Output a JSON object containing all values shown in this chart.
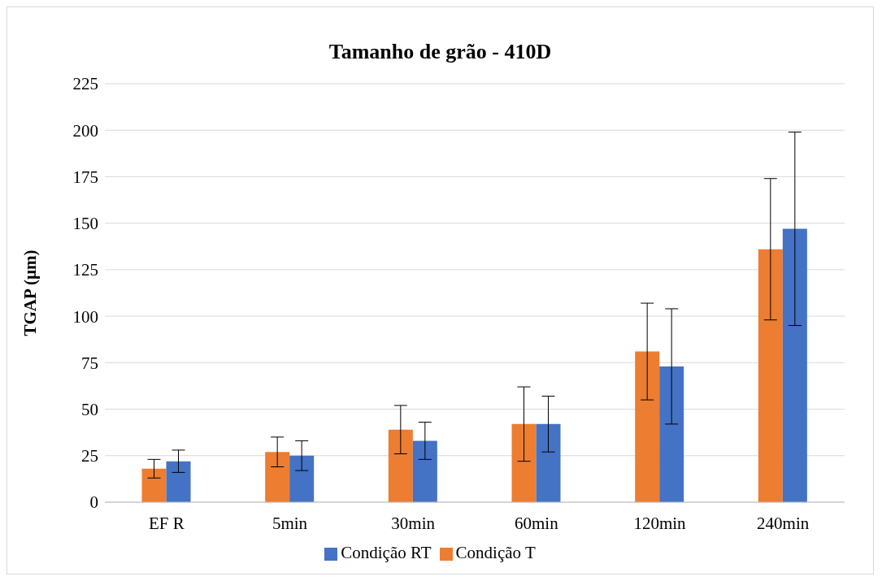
{
  "chart_data": {
    "type": "bar",
    "title": "Tamanho de grão - 410D",
    "ylabel": "TGAP (µm)",
    "categories": [
      "EF R",
      "5min",
      "30min",
      "60min",
      "120min",
      "240min"
    ],
    "series": [
      {
        "name": "Condição T",
        "color": "#ed7d31",
        "values": [
          18,
          27,
          39,
          42,
          81,
          136
        ],
        "errors": [
          5,
          8,
          13,
          20,
          26,
          38
        ]
      },
      {
        "name": "Condição RT",
        "color": "#4472c4",
        "values": [
          22,
          25,
          33,
          42,
          73,
          147
        ],
        "errors": [
          6,
          8,
          10,
          15,
          31,
          52
        ]
      }
    ],
    "ylim": [
      0,
      225
    ],
    "yticks": [
      0,
      25,
      50,
      75,
      100,
      125,
      150,
      175,
      200,
      225
    ],
    "grid": "y",
    "legend": "bottom"
  }
}
